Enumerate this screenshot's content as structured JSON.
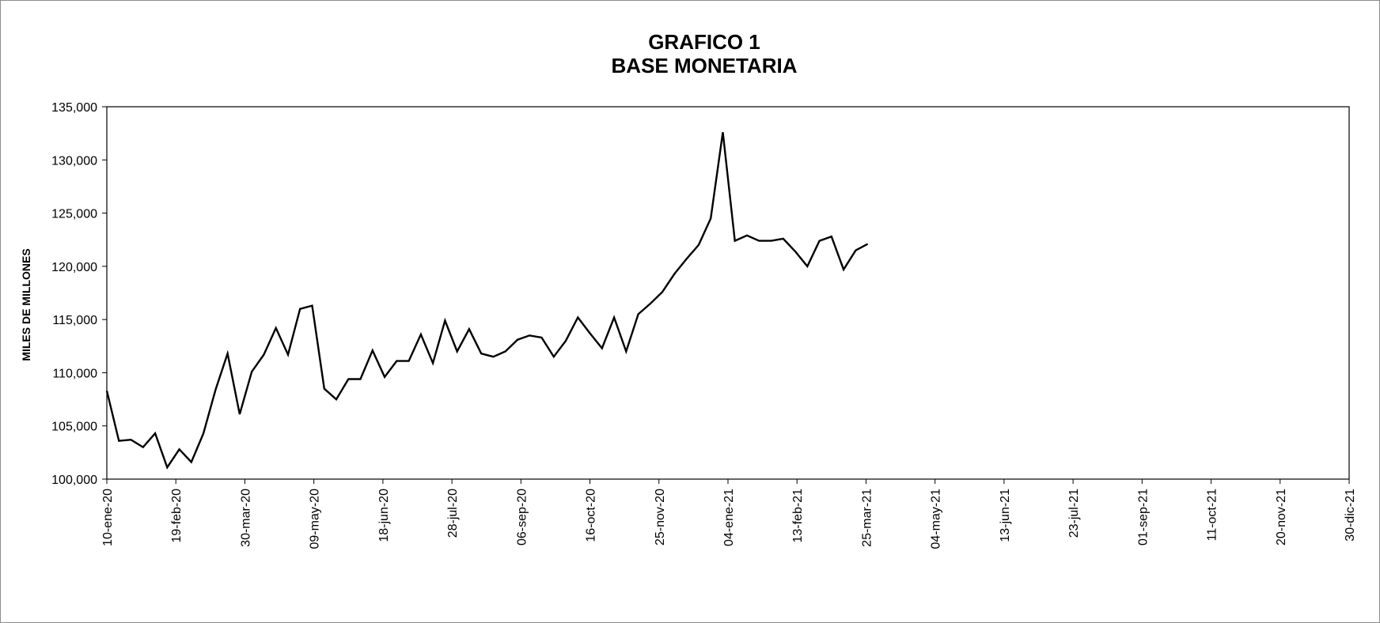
{
  "chart_data": {
    "type": "line",
    "title": "GRAFICO 1",
    "subtitle": "BASE MONETARIA",
    "xlabel": "",
    "ylabel": "MILES DE  MILLONES",
    "ylim": [
      100000,
      135000
    ],
    "xlim": [
      "2020-01-10",
      "2021-12-30"
    ],
    "yticks": [
      100000,
      105000,
      110000,
      115000,
      120000,
      125000,
      130000,
      135000
    ],
    "ytick_labels": [
      "100,000",
      "105,000",
      "110,000",
      "115,000",
      "120,000",
      "125,000",
      "130,000",
      "135,000"
    ],
    "xticks": [
      "2020-01-10",
      "2020-02-19",
      "2020-03-30",
      "2020-05-09",
      "2020-06-18",
      "2020-07-28",
      "2020-09-06",
      "2020-10-16",
      "2020-11-25",
      "2021-01-04",
      "2021-02-13",
      "2021-03-25",
      "2021-05-04",
      "2021-06-13",
      "2021-07-23",
      "2021-09-01",
      "2021-10-11",
      "2021-11-20",
      "2021-12-30"
    ],
    "xtick_labels": [
      "10-ene-20",
      "19-feb-20",
      "30-mar-20",
      "09-may-20",
      "18-jun-20",
      "28-jul-20",
      "06-sep-20",
      "16-oct-20",
      "25-nov-20",
      "04-ene-21",
      "13-feb-21",
      "25-mar-21",
      "04-may-21",
      "13-jun-21",
      "23-jul-21",
      "01-sep-21",
      "11-oct-21",
      "20-nov-21",
      "30-dic-21"
    ],
    "grid": false,
    "series": [
      {
        "color": "#000000",
        "x": [
          "2020-01-10",
          "2020-01-17",
          "2020-01-24",
          "2020-01-31",
          "2020-02-07",
          "2020-02-14",
          "2020-02-21",
          "2020-02-28",
          "2020-03-06",
          "2020-03-13",
          "2020-03-20",
          "2020-03-27",
          "2020-04-03",
          "2020-04-10",
          "2020-04-17",
          "2020-04-24",
          "2020-05-01",
          "2020-05-08",
          "2020-05-15",
          "2020-05-22",
          "2020-05-29",
          "2020-06-05",
          "2020-06-12",
          "2020-06-19",
          "2020-06-26",
          "2020-07-03",
          "2020-07-10",
          "2020-07-17",
          "2020-07-24",
          "2020-07-31",
          "2020-08-07",
          "2020-08-14",
          "2020-08-21",
          "2020-08-28",
          "2020-09-04",
          "2020-09-11",
          "2020-09-18",
          "2020-09-25",
          "2020-10-02",
          "2020-10-09",
          "2020-10-16",
          "2020-10-23",
          "2020-10-30",
          "2020-11-06",
          "2020-11-13",
          "2020-11-20",
          "2020-11-27",
          "2020-12-04",
          "2020-12-11",
          "2020-12-18",
          "2020-12-25",
          "2021-01-01",
          "2021-01-08",
          "2021-01-15",
          "2021-01-22",
          "2021-01-29",
          "2021-02-05",
          "2021-02-12",
          "2021-02-19",
          "2021-02-26",
          "2021-03-05",
          "2021-03-12",
          "2021-03-19",
          "2021-03-26"
        ],
        "values": [
          108300,
          103600,
          103700,
          103000,
          104300,
          101100,
          102800,
          101600,
          104300,
          108400,
          111800,
          106100,
          110100,
          111700,
          114200,
          111700,
          116000,
          116300,
          108500,
          107500,
          109400,
          109400,
          112100,
          109600,
          111100,
          111100,
          113600,
          110900,
          114900,
          112000,
          114100,
          111800,
          111500,
          112000,
          113100,
          113500,
          113300,
          111500,
          113000,
          115200,
          113700,
          112300,
          115200,
          112000,
          115500,
          116500,
          117600,
          119300,
          120700,
          122000,
          124500,
          132600,
          122400,
          122900,
          122400,
          122400,
          122600,
          121400,
          120000,
          122400,
          122800,
          119700,
          121500,
          122100
        ]
      }
    ]
  }
}
